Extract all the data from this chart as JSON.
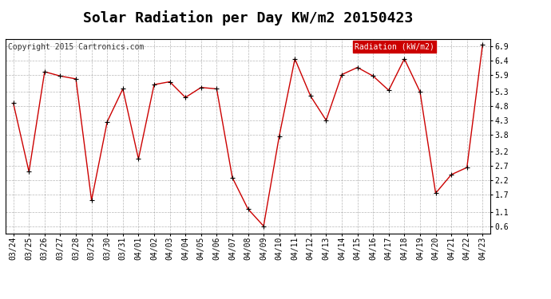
{
  "title": "Solar Radiation per Day KW/m2 20150423",
  "copyright_text": "Copyright 2015 Cartronics.com",
  "legend_label": "Radiation (kW/m2)",
  "x_labels": [
    "03/24",
    "03/25",
    "03/26",
    "03/27",
    "03/28",
    "03/29",
    "03/30",
    "03/31",
    "04/01",
    "04/02",
    "04/03",
    "04/04",
    "04/05",
    "04/06",
    "04/07",
    "04/08",
    "04/09",
    "04/10",
    "04/11",
    "04/12",
    "04/13",
    "04/14",
    "04/15",
    "04/16",
    "04/17",
    "04/18",
    "04/19",
    "04/20",
    "04/21",
    "04/22",
    "04/23"
  ],
  "y_values": [
    4.9,
    2.5,
    6.0,
    5.85,
    5.75,
    1.5,
    4.25,
    5.4,
    2.95,
    5.55,
    5.65,
    5.1,
    5.45,
    5.4,
    2.3,
    1.2,
    0.6,
    3.75,
    6.45,
    5.15,
    4.3,
    5.9,
    6.15,
    5.85,
    5.35,
    6.45,
    5.3,
    1.75,
    2.4,
    2.65,
    6.95
  ],
  "line_color": "#cc0000",
  "marker_color": "#000000",
  "bg_color": "#ffffff",
  "plot_bg_color": "#ffffff",
  "grid_color": "#888888",
  "legend_bg": "#cc0000",
  "legend_text_color": "#ffffff",
  "border_color": "#000000",
  "y_ticks": [
    0.6,
    1.1,
    1.7,
    2.2,
    2.7,
    3.2,
    3.8,
    4.3,
    4.8,
    5.3,
    5.9,
    6.4,
    6.9
  ],
  "ylim": [
    0.35,
    7.15
  ],
  "title_fontsize": 13,
  "copyright_fontsize": 7,
  "tick_fontsize": 7,
  "legend_fontsize": 7
}
